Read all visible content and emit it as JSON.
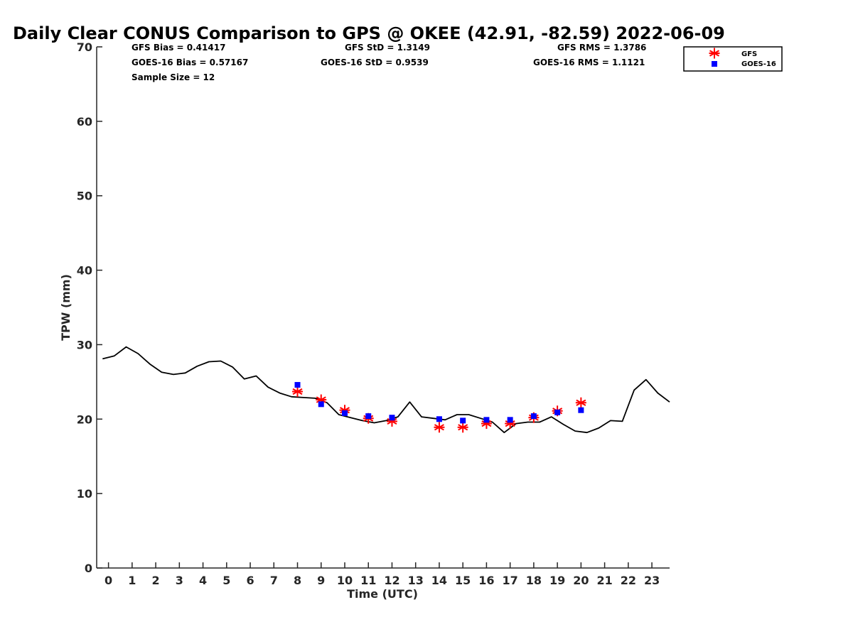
{
  "chart_data": {
    "type": "line",
    "title": "Daily Clear CONUS Comparison to GPS @ OKEE (42.91, -82.59) 2022-06-09",
    "xlabel": "Time (UTC)",
    "ylabel": "TPW (mm)",
    "xlim": [
      -0.5,
      23.75
    ],
    "ylim": [
      0,
      70
    ],
    "x_ticks": [
      "0",
      "1",
      "2",
      "3",
      "4",
      "5",
      "6",
      "7",
      "8",
      "9",
      "10",
      "11",
      "12",
      "13",
      "14",
      "15",
      "16",
      "17",
      "18",
      "19",
      "20",
      "21",
      "22",
      "23"
    ],
    "y_ticks": [
      "0",
      "10",
      "20",
      "30",
      "40",
      "50",
      "60",
      "70"
    ],
    "grid": false,
    "legend_position": "top-right",
    "stats": [
      {
        "label": "GFS Bias = 0.41417"
      },
      {
        "label": "GFS StD = 1.3149"
      },
      {
        "label": "GFS RMS = 1.3786"
      },
      {
        "label": "GOES-16 Bias = 0.57167"
      },
      {
        "label": "GOES-16 StD = 0.9539"
      },
      {
        "label": "GOES-16 RMS = 1.1121"
      },
      {
        "label": "Sample Size = 12"
      }
    ],
    "series": [
      {
        "style": "line",
        "color": "#000000",
        "x": [
          -0.25,
          0.25,
          0.75,
          1.25,
          1.75,
          2.25,
          2.75,
          3.25,
          3.75,
          4.25,
          4.75,
          5.25,
          5.75,
          6.25,
          6.75,
          7.25,
          7.75,
          8.25,
          8.75,
          9.25,
          9.75,
          10.25,
          10.75,
          11.25,
          11.75,
          12.25,
          12.75,
          13.25,
          13.75,
          14.25,
          14.75,
          15.25,
          15.75,
          16.25,
          16.75,
          17.25,
          17.75,
          18.25,
          18.75,
          19.25,
          19.75,
          20.25,
          20.75,
          21.25,
          21.75,
          22.25,
          22.75,
          23.25,
          23.75
        ],
        "values": [
          28.1,
          28.5,
          29.7,
          28.8,
          27.4,
          26.3,
          26.0,
          26.2,
          27.1,
          27.7,
          27.8,
          27.0,
          25.4,
          25.8,
          24.3,
          23.5,
          23.0,
          22.9,
          22.8,
          22.2,
          20.6,
          20.2,
          19.8,
          19.5,
          19.8,
          20.3,
          22.3,
          20.3,
          20.1,
          19.9,
          20.6,
          20.6,
          20.1,
          19.6,
          18.2,
          19.4,
          19.6,
          19.6,
          20.3,
          19.3,
          18.4,
          18.2,
          18.8,
          19.8,
          19.7,
          23.9,
          25.3,
          23.5,
          22.3
        ]
      },
      {
        "name": "GFS",
        "style": "asterisk",
        "color": "#ff0000",
        "x": [
          8,
          9,
          10,
          11,
          12,
          14,
          15,
          16,
          17,
          18,
          19,
          20
        ],
        "values": [
          23.7,
          22.6,
          21.2,
          20.1,
          19.7,
          18.9,
          18.9,
          19.4,
          19.4,
          20.2,
          21.1,
          22.2
        ]
      },
      {
        "name": "GOES-16",
        "style": "square",
        "color": "#0000ff",
        "x": [
          8,
          9,
          10,
          11,
          12,
          14,
          15,
          16,
          17,
          18,
          19,
          20
        ],
        "values": [
          24.6,
          22.0,
          20.8,
          20.4,
          20.2,
          20.0,
          19.8,
          19.9,
          19.9,
          20.4,
          20.9,
          21.2
        ]
      }
    ]
  }
}
